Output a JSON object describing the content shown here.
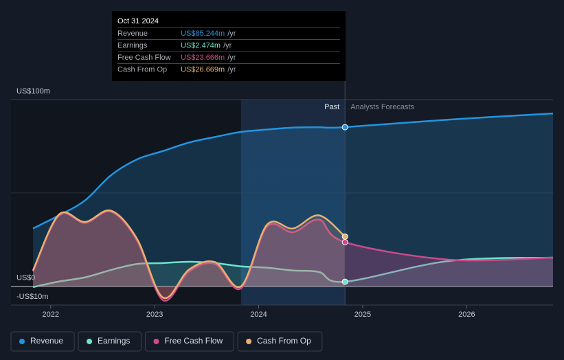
{
  "chart_data": {
    "type": "area-line",
    "x": [
      2021.83,
      2022.08,
      2022.33,
      2022.58,
      2022.83,
      2023.08,
      2023.33,
      2023.58,
      2023.83,
      2024.08,
      2024.33,
      2024.58,
      2024.83,
      2025.83,
      2026.83
    ],
    "xlim": [
      2021.66,
      2026.83
    ],
    "xticks": [
      2022,
      2023,
      2024,
      2025,
      2026
    ],
    "ylim": [
      -10,
      100
    ],
    "yticks": [
      {
        "value": 100,
        "label": "US$100m"
      },
      {
        "value": 0,
        "label": "US$0"
      },
      {
        "value": -10,
        "label": "-US$10m"
      }
    ],
    "series": [
      {
        "name": "Revenue",
        "color": "#2394df",
        "values": [
          31,
          38,
          46,
          59.5,
          68,
          72.5,
          77,
          80,
          82.7,
          84,
          85,
          85.2,
          85.244,
          89.3,
          92.6
        ]
      },
      {
        "name": "Earnings",
        "color": "#6ce5c9",
        "values": [
          -0.4,
          2.6,
          4.8,
          8.8,
          12,
          12.5,
          13.2,
          12.5,
          10.7,
          10,
          8.5,
          7.7,
          2.474,
          13.6,
          15.4
        ]
      },
      {
        "name": "Free Cash Flow",
        "color": "#cc4a8b",
        "values": [
          8,
          38,
          34,
          40,
          24.6,
          -7.4,
          8,
          12,
          -1.1,
          32,
          29,
          35.7,
          23.666,
          14.3,
          15.4
        ]
      },
      {
        "name": "Cash From Op",
        "color": "#e8b06f",
        "values": [
          8.5,
          38.5,
          34.5,
          40.5,
          25.5,
          -6,
          9,
          13,
          0,
          33,
          31,
          38,
          26.669,
          null,
          null
        ]
      }
    ],
    "past_label": "Past",
    "forecast_label": "Analysts Forecasts",
    "tooltip": {
      "date": "Oct 31 2024",
      "x": 2024.83,
      "rows": [
        {
          "label": "Revenue",
          "value": 85.244,
          "value_label": "US$85.244m",
          "unit": "/yr"
        },
        {
          "label": "Earnings",
          "value": 2.474,
          "value_label": "US$2.474m",
          "unit": "/yr"
        },
        {
          "label": "Free Cash Flow",
          "value": 23.666,
          "value_label": "US$23.666m",
          "unit": "/yr"
        },
        {
          "label": "Cash From Op",
          "value": 26.669,
          "value_label": "US$26.669m",
          "unit": "/yr"
        }
      ]
    }
  }
}
